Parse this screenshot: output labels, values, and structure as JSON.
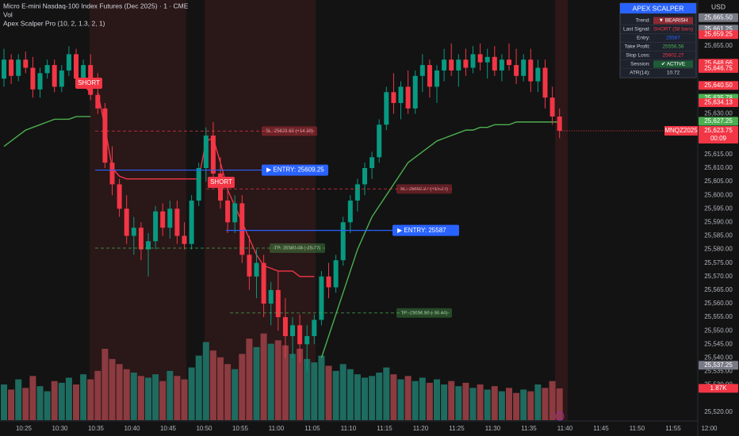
{
  "header": {
    "title": "Micro E-mini Nasdaq-100 Index Futures (Dec 2025) · 1 · CME",
    "volume": "Vol",
    "indicator": "Apex Scalper Pro (10, 2, 1.3, 2, 1)",
    "currency": "USD"
  },
  "chart_data": {
    "type": "candlestick",
    "up_color": "#089981",
    "down_color": "#f23645",
    "open": [
      25643,
      25650,
      25644,
      25650,
      25647,
      25639,
      25645,
      25648,
      25640,
      25646,
      25652,
      25643,
      25648,
      25637,
      25632,
      25612,
      25604,
      25595,
      25585,
      25588,
      25580,
      25583,
      25594,
      25588,
      25595,
      25585,
      25582,
      25598,
      25610,
      25622,
      25608,
      25598,
      25590,
      25597,
      25578,
      25570,
      25575,
      25560,
      25565,
      25555,
      25548,
      25552,
      25545,
      25548,
      25554,
      25570,
      25566,
      25576,
      25590,
      25598,
      25604,
      25610,
      25614,
      25626,
      25638,
      25634,
      25640,
      25632,
      25644,
      25648,
      25640,
      25646,
      25650,
      25646,
      25650,
      25647,
      25652,
      25649,
      25651,
      25646,
      25650,
      25648,
      25644,
      25650,
      25642,
      25647,
      25636,
      25629
    ],
    "high": [
      25654,
      25652,
      25652,
      25653,
      25651,
      25647,
      25650,
      25650,
      25648,
      25655,
      25654,
      25650,
      25652,
      25645,
      25634,
      25618,
      25606,
      25600,
      25592,
      25590,
      25586,
      25596,
      25597,
      25598,
      25598,
      25590,
      25600,
      25612,
      25625,
      25627,
      25614,
      25605,
      25600,
      25600,
      25585,
      25580,
      25578,
      25568,
      25572,
      25562,
      25555,
      25556,
      25552,
      25556,
      25572,
      25575,
      25578,
      25592,
      25600,
      25606,
      25612,
      25616,
      25628,
      25640,
      25645,
      25642,
      25646,
      25646,
      25652,
      25650,
      25648,
      25654,
      25656,
      25652,
      25654,
      25655,
      25656,
      25654,
      25655,
      25652,
      25656,
      25654,
      25652,
      25654,
      25650,
      25650,
      25640,
      25632
    ],
    "low": [
      25640,
      25641,
      25642,
      25645,
      25636,
      25636,
      25643,
      25638,
      25638,
      25644,
      25640,
      25640,
      25635,
      25630,
      25610,
      25600,
      25592,
      25582,
      25578,
      25576,
      25570,
      25580,
      25585,
      25584,
      25582,
      25580,
      25580,
      25596,
      25605,
      25606,
      25595,
      25586,
      25586,
      25575,
      25565,
      25562,
      25555,
      25552,
      25550,
      25540,
      25540,
      25538,
      25535,
      25545,
      25552,
      25562,
      25564,
      25574,
      25586,
      25594,
      25600,
      25606,
      25612,
      25624,
      25630,
      25628,
      25630,
      25630,
      25638,
      25636,
      25634,
      25642,
      25644,
      25640,
      25644,
      25645,
      25646,
      25643,
      25644,
      25642,
      25646,
      25641,
      25642,
      25638,
      25638,
      25632,
      25626,
      25621
    ],
    "close": [
      25650,
      25644,
      25650,
      25647,
      25639,
      25645,
      25648,
      25640,
      25646,
      25652,
      25643,
      25648,
      25637,
      25632,
      25612,
      25604,
      25595,
      25585,
      25588,
      25580,
      25583,
      25594,
      25588,
      25595,
      25585,
      25582,
      25598,
      25610,
      25622,
      25608,
      25598,
      25590,
      25597,
      25578,
      25570,
      25575,
      25560,
      25565,
      25555,
      25548,
      25552,
      25545,
      25548,
      25554,
      25570,
      25566,
      25576,
      25590,
      25598,
      25604,
      25610,
      25614,
      25626,
      25638,
      25634,
      25640,
      25632,
      25644,
      25648,
      25640,
      25646,
      25650,
      25646,
      25650,
      25647,
      25652,
      25649,
      25651,
      25646,
      25650,
      25648,
      25644,
      25650,
      25642,
      25647,
      25636,
      25629,
      25623.75
    ],
    "volume": {
      "up_color": "#1e6b60",
      "down_color": "#8c3b40",
      "values": [
        2100,
        1800,
        2400,
        1900,
        2600,
        2000,
        1700,
        2300,
        2200,
        2500,
        2100,
        2700,
        2400,
        2900,
        4200,
        3600,
        3300,
        3000,
        2800,
        2600,
        2500,
        2700,
        2300,
        2900,
        2600,
        2400,
        3100,
        3800,
        4600,
        4100,
        3700,
        3300,
        3000,
        3900,
        4800,
        4300,
        5100,
        4500,
        4700,
        4400,
        3900,
        4200,
        3600,
        3400,
        3800,
        3200,
        2900,
        3300,
        3000,
        2700,
        2500,
        2600,
        2800,
        3100,
        2700,
        2400,
        2600,
        2300,
        2500,
        2200,
        2400,
        2100,
        2300,
        2000,
        2200,
        1900,
        2100,
        1800,
        2000,
        1700,
        1900,
        1600,
        1800,
        1700,
        2100,
        1900,
        2300,
        1870
      ],
      "last_label": "1.87K",
      "label_color": "#f23645"
    },
    "trail": {
      "long_color": "#4caf50",
      "short_color": "#f23645",
      "long": [
        25618,
        25620,
        25622,
        25624,
        25625,
        25626,
        25627,
        25628,
        25628,
        25628,
        25629,
        25629,
        25629,
        null,
        null,
        null,
        null,
        null,
        null,
        null,
        null,
        null,
        null,
        null,
        null,
        null,
        null,
        null,
        null,
        null,
        null,
        null,
        null,
        null,
        null,
        null,
        null,
        null,
        null,
        null,
        null,
        null,
        null,
        null,
        25540,
        25548,
        25556,
        25564,
        25572,
        25580,
        25586,
        25592,
        25596,
        25600,
        25604,
        25608,
        25612,
        25614,
        25616,
        25618,
        25620,
        25621,
        25622,
        25623,
        25624,
        25624,
        25625,
        25625,
        25626,
        25626,
        25626,
        25627,
        25627,
        25627,
        25627,
        25627,
        25627,
        25627
      ],
      "short": [
        null,
        null,
        null,
        null,
        null,
        null,
        null,
        null,
        null,
        null,
        null,
        null,
        null,
        25638,
        25625,
        25610,
        25607,
        25606,
        25606,
        25606,
        25606,
        25606,
        25606,
        25606,
        25606,
        25606,
        25606,
        25606,
        25620,
        25621,
        25612,
        25602,
        25596,
        25590,
        25584,
        25578,
        25574,
        25573,
        25572,
        25572,
        25572,
        25570,
        25570,
        25570,
        null,
        null,
        null,
        null,
        null,
        null,
        null,
        null,
        null,
        null,
        null,
        null,
        null,
        null,
        null,
        null,
        null,
        null,
        null,
        null,
        null,
        null,
        null,
        null,
        null,
        null,
        null,
        null,
        null,
        null,
        null,
        null,
        null,
        null
      ]
    },
    "signals": [
      "SHORT",
      "SHORT"
    ],
    "signal_color": "#f23645",
    "levels": [
      {
        "label": "▶ ENTRY: 25609.25",
        "value": 25609.25,
        "color": "#2962ff",
        "style": "solid"
      },
      {
        "label": "▶ ENTRY: 25587",
        "value": 25587,
        "color": "#2962ff",
        "style": "solid"
      },
      {
        "label": "SL: 25623.63 (+14.38)",
        "value": 25623.63,
        "color": "#f23645",
        "style": "dashed"
      },
      {
        "label": "SL: 25602.27 (+15.27)",
        "value": 25602.27,
        "color": "#f23645",
        "style": "dashed"
      },
      {
        "label": "TP: 25580.48 (-28.77)",
        "value": 25580.48,
        "color": "#4caf50",
        "style": "dashed"
      },
      {
        "label": "TP: 25556.56 (-30.44)",
        "value": 25556.56,
        "color": "#4caf50",
        "style": "dashed"
      }
    ],
    "xticks": [
      "10:25",
      "10:30",
      "10:35",
      "10:40",
      "10:45",
      "10:50",
      "10:55",
      "11:00",
      "11:05",
      "11:10",
      "11:15",
      "11:20",
      "11:25",
      "11:30",
      "11:35",
      "11:40",
      "11:45",
      "11:50",
      "11:55",
      "12:00"
    ],
    "ylim": [
      25517,
      25672
    ],
    "yticks": [
      {
        "value": 25655,
        "label": "25,655.00"
      },
      {
        "value": 25630,
        "label": "25,630.00"
      },
      {
        "value": 25615,
        "label": "25,615.00"
      },
      {
        "value": 25610,
        "label": "25,610.00"
      },
      {
        "value": 25605,
        "label": "25,605.00"
      },
      {
        "value": 25600,
        "label": "25,600.00"
      },
      {
        "value": 25595,
        "label": "25,595.00"
      },
      {
        "value": 25590,
        "label": "25,590.00"
      },
      {
        "value": 25585,
        "label": "25,585.00"
      },
      {
        "value": 25580,
        "label": "25,580.00"
      },
      {
        "value": 25575,
        "label": "25,575.00"
      },
      {
        "value": 25570,
        "label": "25,570.00"
      },
      {
        "value": 25565,
        "label": "25,565.00"
      },
      {
        "value": 25560,
        "label": "25,560.00"
      },
      {
        "value": 25555,
        "label": "25,555.00"
      },
      {
        "value": 25550,
        "label": "25,550.00"
      },
      {
        "value": 25545,
        "label": "25,545.00"
      },
      {
        "value": 25540,
        "label": "25,540.00"
      },
      {
        "value": 25535,
        "label": "25,535.00"
      },
      {
        "value": 25530,
        "label": "25,530.00"
      },
      {
        "value": 25520,
        "label": "25,520.00"
      }
    ],
    "price_tags": [
      {
        "value": 25665.5,
        "label": "25,665.50",
        "color": "#787b86"
      },
      {
        "value": 25661.25,
        "label": "25,661.25",
        "color": "#787b86"
      },
      {
        "value": 25659.25,
        "label": "25,659.25",
        "color": "#f23645"
      },
      {
        "value": 25648.66,
        "label": "25,648.66",
        "color": "#f23645"
      },
      {
        "value": 25646.75,
        "label": "25,646.75",
        "color": "#f23645"
      },
      {
        "value": 25640.5,
        "label": "25,640.50",
        "color": "#f23645"
      },
      {
        "value": 25635.78,
        "label": "25,635.78",
        "color": "#4caf50"
      },
      {
        "value": 25634.13,
        "label": "25,634.13",
        "color": "#f23645"
      },
      {
        "value": 25627.25,
        "label": "25,627.25",
        "color": "#4caf50"
      },
      {
        "value": 25537.25,
        "label": "25,537.25",
        "color": "#787b86"
      }
    ],
    "last_price": {
      "value": 25623.75,
      "label": "25,623.75",
      "color": "#f23645"
    },
    "countdown": "00:09",
    "symbol_tag": "MNQZ2025"
  },
  "panel": {
    "title": "APEX SCALPER",
    "title_color": "#2962ff",
    "rows": [
      {
        "label": "Trend:",
        "value": "▼ BEARISH",
        "color": "#ffffff",
        "bg": "#8c2a33"
      },
      {
        "label": "Last Signal:",
        "value": "SHORT (58 bars)",
        "color": "#f23645"
      },
      {
        "label": "Entry:",
        "value": "25587",
        "color": "#2962ff"
      },
      {
        "label": "Take Profit:",
        "value": "25556.56",
        "color": "#4caf50"
      },
      {
        "label": "Stop Loss:",
        "value": "25602.27",
        "color": "#f23645"
      },
      {
        "label": "Session:",
        "value": "✔ ACTIVE",
        "color": "#ffffff",
        "bg": "#1e5c36"
      },
      {
        "label": "ATR(14):",
        "value": "10.72",
        "color": "#d1d4dc"
      }
    ]
  }
}
